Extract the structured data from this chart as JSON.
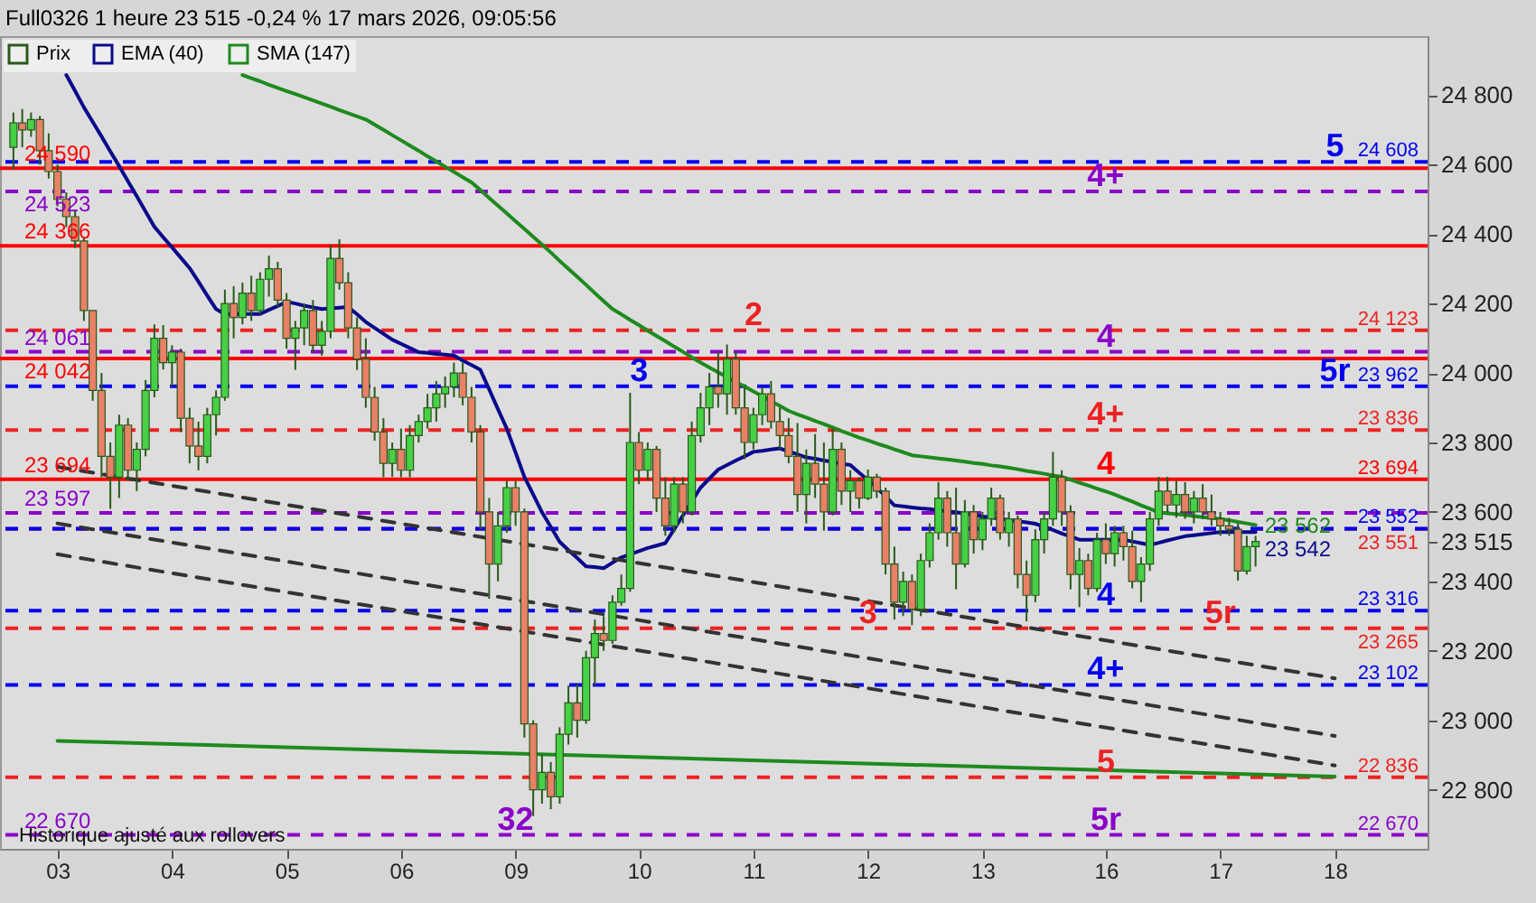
{
  "chart_data": {
    "type": "candlestick",
    "title": "Full0326 1 heure 23 515 -0,24 % 17 mars 2026, 09:05:56",
    "legend": "top left",
    "grid": false,
    "ylim": [
      22630,
      24970
    ],
    "yticks": [
      {
        "value": 22800,
        "label": "22 800"
      },
      {
        "value": 23000,
        "label": "23 000"
      },
      {
        "value": 23200,
        "label": "23 200"
      },
      {
        "value": 23400,
        "label": "23 400"
      },
      {
        "value": 23515,
        "label": "23 515"
      },
      {
        "value": 23600,
        "label": "23 600"
      },
      {
        "value": 23800,
        "label": "23 800"
      },
      {
        "value": 24000,
        "label": "24 000"
      },
      {
        "value": 24200,
        "label": "24 200"
      },
      {
        "value": 24400,
        "label": "24 400"
      },
      {
        "value": 24600,
        "label": "24 600"
      },
      {
        "value": 24800,
        "label": "24 800"
      }
    ],
    "categories": [
      null,
      null,
      null,
      null,
      null,
      "03",
      null,
      null,
      null,
      null,
      null,
      null,
      null,
      null,
      null,
      null,
      null,
      null,
      "04",
      null,
      null,
      null,
      null,
      null,
      null,
      null,
      null,
      null,
      null,
      null,
      null,
      "05",
      null,
      null,
      null,
      null,
      null,
      null,
      null,
      null,
      null,
      null,
      null,
      null,
      "06",
      null,
      null,
      null,
      null,
      null,
      null,
      null,
      null,
      null,
      null,
      null,
      null,
      "09",
      null,
      null,
      null,
      null,
      null,
      null,
      null,
      null,
      null,
      null,
      null,
      null,
      null,
      "10",
      null,
      null,
      null,
      null,
      null,
      null,
      null,
      null,
      null,
      null,
      null,
      null,
      "11",
      null,
      null,
      null,
      null,
      null,
      null,
      null,
      null,
      null,
      null,
      null,
      null,
      "12",
      null,
      null,
      null,
      null,
      null,
      null,
      null,
      null,
      null,
      null,
      null,
      null,
      "13",
      null,
      null,
      null,
      null,
      null,
      null,
      null,
      null,
      null,
      null,
      null,
      null,
      null,
      "16",
      null,
      null,
      null,
      null,
      null,
      null,
      null,
      null,
      null,
      null,
      null,
      null,
      "17",
      null,
      null,
      null,
      null,
      null,
      null,
      null,
      null,
      null,
      null,
      null,
      null,
      "18",
      null,
      null,
      null,
      null,
      null,
      null,
      null,
      null,
      null
    ],
    "series": [
      {
        "name": "Prix",
        "color": "#2a5a1a",
        "ohlc": [
          [
            24650,
            24750,
            24585,
            24720
          ],
          [
            24720,
            24760,
            24650,
            24700
          ],
          [
            24700,
            24750,
            24680,
            24730
          ],
          [
            24730,
            24740,
            24600,
            24640
          ],
          [
            24640,
            24690,
            24560,
            24580
          ],
          [
            24580,
            24600,
            24480,
            24500
          ],
          [
            24500,
            24520,
            24420,
            24450
          ],
          [
            24450,
            24470,
            24360,
            24380
          ],
          [
            24380,
            24390,
            24150,
            24180
          ],
          [
            24180,
            24180,
            23920,
            23950
          ],
          [
            23950,
            24000,
            23700,
            23760
          ],
          [
            23760,
            23800,
            23609,
            23700
          ],
          [
            23700,
            23880,
            23640,
            23850
          ],
          [
            23850,
            23870,
            23690,
            23720
          ],
          [
            23720,
            23800,
            23660,
            23780
          ],
          [
            23780,
            23980,
            23760,
            23950
          ],
          [
            23950,
            24140,
            23930,
            24100
          ],
          [
            24100,
            24138,
            24010,
            24030
          ],
          [
            24030,
            24080,
            23960,
            24060
          ],
          [
            24060,
            24070,
            23830,
            23870
          ],
          [
            23870,
            23900,
            23740,
            23790
          ],
          [
            23790,
            23860,
            23720,
            23760
          ],
          [
            23760,
            23900,
            23740,
            23880
          ],
          [
            23880,
            23950,
            23820,
            23930
          ],
          [
            23930,
            24240,
            23920,
            24200
          ],
          [
            24200,
            24250,
            24100,
            24160
          ],
          [
            24160,
            24260,
            24140,
            24230
          ],
          [
            24230,
            24280,
            24150,
            24180
          ],
          [
            24180,
            24290,
            24170,
            24270
          ],
          [
            24270,
            24338,
            24220,
            24300
          ],
          [
            24300,
            24320,
            24190,
            24210
          ],
          [
            24210,
            24230,
            24070,
            24100
          ],
          [
            24100,
            24150,
            24009,
            24130
          ],
          [
            24130,
            24200,
            24080,
            24180
          ],
          [
            24180,
            24210,
            24060,
            24080
          ],
          [
            24080,
            24150,
            24050,
            24120
          ],
          [
            24120,
            24370,
            24100,
            24330
          ],
          [
            24330,
            24385,
            24240,
            24260
          ],
          [
            24260,
            24290,
            24100,
            24130
          ],
          [
            24130,
            24160,
            24009,
            24040
          ],
          [
            24040,
            24100,
            23900,
            23930
          ],
          [
            23930,
            23960,
            23805,
            23830
          ],
          [
            23830,
            23870,
            23700,
            23740
          ],
          [
            23740,
            23800,
            23701,
            23780
          ],
          [
            23780,
            23840,
            23700,
            23720
          ],
          [
            23720,
            23850,
            23700,
            23820
          ],
          [
            23820,
            23880,
            23800,
            23860
          ],
          [
            23860,
            23940,
            23840,
            23900
          ],
          [
            23900,
            23977,
            23860,
            23940
          ],
          [
            23940,
            23990,
            23900,
            23960
          ],
          [
            23960,
            24030,
            23930,
            24000
          ],
          [
            24000,
            24030,
            23907,
            23930
          ],
          [
            23930,
            23960,
            23800,
            23830
          ],
          [
            23830,
            23850,
            23550,
            23600
          ],
          [
            23600,
            23640,
            23350,
            23450
          ],
          [
            23450,
            23600,
            23400,
            23560
          ],
          [
            23560,
            23690,
            23540,
            23670
          ],
          [
            23670,
            23690,
            23560,
            23600
          ],
          [
            23600,
            23610,
            22950,
            22990
          ],
          [
            22990,
            23000,
            22724,
            22800
          ],
          [
            22800,
            22900,
            22760,
            22850
          ],
          [
            22850,
            22880,
            22744,
            22780
          ],
          [
            22780,
            22980,
            22760,
            22960
          ],
          [
            22960,
            23100,
            22930,
            23050
          ],
          [
            23050,
            23104,
            22950,
            23000
          ],
          [
            23000,
            23200,
            22990,
            23180
          ],
          [
            23180,
            23290,
            23100,
            23250
          ],
          [
            23250,
            23300,
            23200,
            23230
          ],
          [
            23230,
            23360,
            23220,
            23340
          ],
          [
            23340,
            23420,
            23330,
            23380
          ],
          [
            23380,
            23943,
            23370,
            23800
          ],
          [
            23800,
            23830,
            23680,
            23720
          ],
          [
            23720,
            23800,
            23690,
            23780
          ],
          [
            23780,
            23790,
            23600,
            23640
          ],
          [
            23640,
            23700,
            23531,
            23560
          ],
          [
            23560,
            23700,
            23540,
            23680
          ],
          [
            23680,
            23700,
            23567,
            23600
          ],
          [
            23600,
            23860,
            23590,
            23820
          ],
          [
            23820,
            23943,
            23800,
            23900
          ],
          [
            23900,
            24000,
            23850,
            23960
          ],
          [
            23960,
            24060,
            23900,
            23940
          ],
          [
            23940,
            24082,
            23880,
            24040
          ],
          [
            24040,
            24061,
            23880,
            23900
          ],
          [
            23900,
            23960,
            23752,
            23800
          ],
          [
            23800,
            23900,
            23780,
            23880
          ],
          [
            23880,
            23960,
            23850,
            23940
          ],
          [
            23940,
            23977,
            23840,
            23860
          ],
          [
            23860,
            23900,
            23780,
            23820
          ],
          [
            23820,
            23870,
            23740,
            23760
          ],
          [
            23760,
            23856,
            23600,
            23650
          ],
          [
            23650,
            23780,
            23567,
            23740
          ],
          [
            23740,
            23824,
            23640,
            23680
          ],
          [
            23680,
            23800,
            23546,
            23600
          ],
          [
            23600,
            23840,
            23590,
            23780
          ],
          [
            23780,
            23800,
            23620,
            23660
          ],
          [
            23660,
            23720,
            23600,
            23690
          ],
          [
            23690,
            23700,
            23610,
            23640
          ],
          [
            23640,
            23722,
            23634,
            23700
          ],
          [
            23700,
            23710,
            23640,
            23660
          ],
          [
            23660,
            23670,
            23420,
            23450
          ],
          [
            23450,
            23500,
            23290,
            23340
          ],
          [
            23340,
            23428,
            23300,
            23400
          ],
          [
            23400,
            23420,
            23274,
            23320
          ],
          [
            23320,
            23480,
            23300,
            23460
          ],
          [
            23460,
            23567,
            23440,
            23540
          ],
          [
            23540,
            23686,
            23520,
            23640
          ],
          [
            23640,
            23660,
            23500,
            23540
          ],
          [
            23540,
            23670,
            23377,
            23450
          ],
          [
            23450,
            23634,
            23440,
            23600
          ],
          [
            23600,
            23620,
            23480,
            23520
          ],
          [
            23520,
            23600,
            23490,
            23580
          ],
          [
            23580,
            23670,
            23560,
            23640
          ],
          [
            23640,
            23650,
            23520,
            23540
          ],
          [
            23540,
            23600,
            23500,
            23580
          ],
          [
            23580,
            23590,
            23380,
            23420
          ],
          [
            23420,
            23460,
            23285,
            23360
          ],
          [
            23360,
            23550,
            23340,
            23520
          ],
          [
            23520,
            23600,
            23480,
            23580
          ],
          [
            23580,
            23773,
            23560,
            23700
          ],
          [
            23700,
            23720,
            23560,
            23600
          ],
          [
            23600,
            23619,
            23377,
            23420
          ],
          [
            23420,
            23496,
            23326,
            23460
          ],
          [
            23460,
            23480,
            23360,
            23380
          ],
          [
            23380,
            23540,
            23370,
            23520
          ],
          [
            23520,
            23567,
            23450,
            23480
          ],
          [
            23480,
            23560,
            23443,
            23540
          ],
          [
            23540,
            23560,
            23460,
            23500
          ],
          [
            23500,
            23546,
            23380,
            23400
          ],
          [
            23400,
            23470,
            23340,
            23450
          ],
          [
            23450,
            23600,
            23430,
            23580
          ],
          [
            23580,
            23701,
            23560,
            23660
          ],
          [
            23660,
            23701,
            23600,
            23620
          ],
          [
            23620,
            23690,
            23583,
            23650
          ],
          [
            23650,
            23686,
            23580,
            23600
          ],
          [
            23600,
            23660,
            23567,
            23640
          ],
          [
            23640,
            23680,
            23580,
            23600
          ],
          [
            23600,
            23650,
            23560,
            23580
          ],
          [
            23580,
            23600,
            23531,
            23560
          ],
          [
            23560,
            23583,
            23531,
            23550
          ],
          [
            23550,
            23567,
            23402,
            23430
          ],
          [
            23430,
            23531,
            23420,
            23500
          ],
          [
            23500,
            23531,
            23443,
            23515
          ],
          null,
          null,
          null,
          null,
          null,
          null,
          null,
          null,
          null,
          null,
          null,
          null,
          null,
          null,
          null,
          null,
          null,
          null
        ]
      },
      {
        "name": "EMA (40)",
        "type": "line",
        "color": "#0a0a8c",
        "value_labels": [
          null,
          null,
          null,
          null,
          null,
          null,
          null,
          null,
          null,
          null,
          null,
          null,
          null,
          null,
          null,
          null,
          null,
          null,
          null,
          null,
          null,
          null,
          null,
          null,
          null,
          null,
          null,
          null,
          null,
          null,
          null,
          null,
          null,
          null,
          null,
          null,
          null,
          null,
          null,
          null,
          null,
          null,
          null,
          null,
          null,
          null,
          null,
          null,
          null,
          null,
          null,
          null,
          null,
          null,
          null,
          null,
          null,
          null,
          null,
          null,
          null,
          null,
          null,
          null,
          null,
          null,
          null,
          null,
          null,
          null,
          null,
          null,
          null,
          null,
          null,
          null,
          null,
          null,
          null,
          null,
          null,
          null,
          null,
          null,
          null,
          null,
          null,
          null,
          null,
          null,
          null,
          null,
          null,
          null,
          null,
          null,
          null,
          null,
          null,
          null,
          null,
          null,
          null,
          null,
          null,
          null,
          null,
          null,
          null,
          null,
          null,
          null,
          null,
          null,
          null,
          null,
          null,
          null,
          null,
          null,
          null,
          null,
          null,
          null,
          null,
          null,
          null,
          null,
          null,
          null,
          null,
          null,
          null,
          null,
          null,
          null,
          null,
          null,
          null,
          null,
          null,
          "23 542",
          null,
          null,
          null,
          null,
          null,
          null,
          null,
          null,
          null,
          null,
          null,
          null,
          null,
          null,
          null,
          null,
          null,
          null
        ],
        "values": [
          null,
          null,
          null,
          null,
          null,
          null,
          24858,
          24812,
          24765,
          24723,
          24681,
          24638,
          24596,
          24552,
          24509,
          24465,
          24421,
          24391,
          24362,
          24332,
          24302,
          24263,
          24223,
          24184,
          24169,
          24169,
          24170,
          24170,
          24170,
          24182,
          24193,
          24205,
          24200,
          24194,
          24189,
          24184,
          24186,
          24188,
          24190,
          24169,
          24147,
          24130,
          24113,
          24096,
          24084,
          24072,
          24060,
          24058,
          24055,
          24053,
          24050,
          24036,
          24023,
          24009,
          23953,
          23896,
          23840,
          23771,
          23701,
          23650,
          23599,
          23557,
          23514,
          23490,
          23467,
          23443,
          23441,
          23438,
          23454,
          23469,
          23478,
          23487,
          23496,
          23503,
          23510,
          23550,
          23590,
          23630,
          23670,
          23696,
          23722,
          23735,
          23748,
          23760,
          23773,
          23776,
          23780,
          23783,
          23774,
          23766,
          23757,
          23753,
          23748,
          23744,
          23739,
          23735,
          23713,
          23692,
          23670,
          23645,
          23619,
          23616,
          23613,
          23610,
          23608,
          23605,
          23602,
          23599,
          23595,
          23591,
          23587,
          23584,
          23580,
          23577,
          23573,
          23570,
          23566,
          23557,
          23548,
          23538,
          23529,
          23520,
          23520,
          23520,
          23520,
          23520,
          23520,
          23515,
          23510,
          23505,
          23511,
          23518,
          23524,
          23530,
          23533,
          23536,
          23539,
          23542,
          23542,
          23542,
          23542,
          23542,
          null,
          null,
          null,
          null,
          null,
          null,
          null,
          null,
          null,
          null,
          null,
          null,
          null,
          null,
          null,
          null,
          null,
          null
        ]
      },
      {
        "name": "SMA (147)",
        "type": "line",
        "color": "#1e8a1e",
        "value_labels": [
          null,
          null,
          null,
          null,
          null,
          null,
          null,
          null,
          null,
          null,
          null,
          null,
          null,
          null,
          null,
          null,
          null,
          null,
          null,
          null,
          null,
          null,
          null,
          null,
          null,
          null,
          null,
          null,
          null,
          null,
          null,
          null,
          null,
          null,
          null,
          null,
          null,
          null,
          null,
          null,
          null,
          null,
          null,
          null,
          null,
          null,
          null,
          null,
          null,
          null,
          null,
          null,
          null,
          null,
          null,
          null,
          null,
          null,
          null,
          null,
          null,
          null,
          null,
          null,
          null,
          null,
          null,
          null,
          null,
          null,
          null,
          null,
          null,
          null,
          null,
          null,
          null,
          null,
          null,
          null,
          null,
          null,
          null,
          null,
          null,
          null,
          null,
          null,
          null,
          null,
          null,
          null,
          null,
          null,
          null,
          null,
          null,
          null,
          null,
          null,
          null,
          null,
          null,
          null,
          null,
          null,
          null,
          null,
          null,
          null,
          null,
          null,
          null,
          null,
          null,
          null,
          null,
          null,
          null,
          null,
          null,
          null,
          null,
          null,
          null,
          null,
          null,
          null,
          null,
          null,
          null,
          null,
          null,
          null,
          null,
          null,
          null,
          null,
          null,
          null,
          null,
          "23 562",
          null,
          null,
          null,
          null,
          null,
          null,
          null,
          null,
          null,
          null,
          null,
          null,
          null,
          null,
          null,
          null,
          null,
          null
        ],
        "values": [
          null,
          null,
          null,
          null,
          null,
          null,
          null,
          null,
          null,
          null,
          null,
          null,
          null,
          null,
          null,
          null,
          null,
          null,
          null,
          null,
          null,
          null,
          null,
          null,
          null,
          null,
          24858,
          24849,
          24840,
          24830,
          24821,
          24812,
          24803,
          24794,
          24785,
          24776,
          24767,
          24757,
          24748,
          24739,
          24730,
          24715,
          24700,
          24685,
          24670,
          24655,
          24640,
          24624,
          24609,
          24594,
          24579,
          24564,
          24549,
          24527,
          24504,
          24482,
          24460,
          24437,
          24415,
          24392,
          24370,
          24347,
          24323,
          24300,
          24277,
          24254,
          24230,
          24207,
          24184,
          24169,
          24153,
          24138,
          24122,
          24107,
          24092,
          24076,
          24061,
          24045,
          24030,
          24016,
          24002,
          23988,
          23974,
          23961,
          23947,
          23933,
          23919,
          23905,
          23891,
          23881,
          23872,
          23862,
          23853,
          23843,
          23833,
          23824,
          23814,
          23806,
          23797,
          23789,
          23780,
          23772,
          23763,
          23760,
          23757,
          23754,
          23751,
          23748,
          23745,
          23741,
          23738,
          23734,
          23731,
          23727,
          23723,
          23718,
          23714,
          23710,
          23705,
          23701,
          23693,
          23684,
          23676,
          23667,
          23659,
          23650,
          23640,
          23630,
          23619,
          23609,
          23599,
          23596,
          23594,
          23591,
          23588,
          23585,
          23583,
          23580,
          23576,
          23571,
          23567,
          23562,
          null,
          null,
          null,
          null,
          null,
          null,
          null,
          null,
          null,
          null,
          null,
          null,
          null,
          null,
          null,
          null,
          null,
          null
        ]
      },
      {
        "type": "line",
        "color": "#1e8a1e",
        "x": [
          "03",
          "18"
        ],
        "values": [
          22941,
          22838
        ]
      },
      {
        "type": "line",
        "color": "#333333",
        "line_style": "dashed",
        "x": [
          "03",
          "18"
        ],
        "values": [
          23730,
          23121
        ]
      },
      {
        "type": "line",
        "color": "#333333",
        "line_style": "dashed",
        "x": [
          "03",
          "18"
        ],
        "values": [
          23567,
          22955
        ]
      },
      {
        "type": "line",
        "color": "#333333",
        "line_style": "dashed",
        "x": [
          "03",
          "18"
        ],
        "values": [
          23478,
          22870
        ]
      }
    ],
    "ref_lines": [
      {
        "axis": "y",
        "value": 24590,
        "color": "#ff0000",
        "line_style": "solid"
      },
      {
        "axis": "y",
        "value": 24366,
        "color": "#ff0000",
        "line_style": "solid"
      },
      {
        "axis": "y",
        "value": 24042,
        "color": "#ff0000",
        "line_style": "solid"
      },
      {
        "axis": "y",
        "value": 23694,
        "color": "#ff0000",
        "line_style": "solid"
      },
      {
        "axis": "y",
        "value": 24523,
        "color": "#8a00c8",
        "line_style": "dashed"
      },
      {
        "axis": "y",
        "value": 24061,
        "color": "#8a00c8",
        "line_style": "dashed"
      },
      {
        "axis": "y",
        "value": 23597,
        "color": "#8a00c8",
        "line_style": "dashed"
      },
      {
        "axis": "y",
        "value": 22670,
        "color": "#8a00c8",
        "line_style": "dashed"
      },
      {
        "axis": "y",
        "value": 24123,
        "color": "#ee2222",
        "line_style": "dashed"
      },
      {
        "axis": "y",
        "value": 23836,
        "color": "#ee2222",
        "line_style": "dashed"
      },
      {
        "axis": "y",
        "value": 23551,
        "color": "#ee2222",
        "line_style": "dashed"
      },
      {
        "axis": "y",
        "value": 23265,
        "color": "#ee2222",
        "line_style": "dashed"
      },
      {
        "axis": "y",
        "value": 22836,
        "color": "#ee2222",
        "line_style": "dashed"
      },
      {
        "axis": "y",
        "value": 24608,
        "color": "#0000ee",
        "line_style": "dashed"
      },
      {
        "axis": "y",
        "value": 23962,
        "color": "#0000ee",
        "line_style": "dashed"
      },
      {
        "axis": "y",
        "value": 23552,
        "color": "#0000ee",
        "line_style": "dashed"
      },
      {
        "axis": "y",
        "value": 23316,
        "color": "#0000ee",
        "line_style": "dashed"
      },
      {
        "axis": "y",
        "value": 23102,
        "color": "#0000ee",
        "line_style": "dashed"
      }
    ],
    "annotations": [
      {
        "text": "24 590",
        "x": "03",
        "y": 24590
      },
      {
        "text": "24 523",
        "x": "03",
        "y": 24523
      },
      {
        "text": "24 366",
        "x": "03",
        "y": 24366
      },
      {
        "text": "24 061",
        "x": "03",
        "y": 24061
      },
      {
        "text": "24 042",
        "x": "03",
        "y": 24042
      },
      {
        "text": "23 694",
        "x": "03",
        "y": 23694
      },
      {
        "text": "23 597",
        "x": "03",
        "y": 23597
      },
      {
        "text": "22 670",
        "x": "03",
        "y": 22670
      },
      {
        "text": "24 608",
        "y": 24608
      },
      {
        "text": "24 123",
        "y": 24123
      },
      {
        "text": "23 962",
        "y": 23962
      },
      {
        "text": "23 836",
        "y": 23836
      },
      {
        "text": "23 694",
        "y": 23694
      },
      {
        "text": "23 551",
        "y": 23551
      },
      {
        "text": "23 552",
        "y": 23552
      },
      {
        "text": "23 316",
        "y": 23316
      },
      {
        "text": "23 265",
        "y": 23265
      },
      {
        "text": "23 102",
        "y": 23102
      },
      {
        "text": "22 836",
        "y": 22836
      },
      {
        "text": "22 670",
        "y": 22670
      },
      {
        "text": "2",
        "x": "11",
        "y": 24123
      },
      {
        "text": "3",
        "x": "10",
        "y": 23962
      },
      {
        "text": "3",
        "x": "12",
        "y": 23265
      },
      {
        "text": "32",
        "x": "09",
        "y": 22670
      },
      {
        "text": "5",
        "x": "18",
        "y": 24608
      },
      {
        "text": "4+",
        "x": "16",
        "y": 24523
      },
      {
        "text": "4",
        "x": "16",
        "y": 24061
      },
      {
        "text": "5r",
        "x": "18",
        "y": 23962
      },
      {
        "text": "4+",
        "x": "16",
        "y": 23836
      },
      {
        "text": "4",
        "x": "16",
        "y": 23694
      },
      {
        "text": "4",
        "x": "16",
        "y": 23316
      },
      {
        "text": "5r",
        "x": "17",
        "y": 23265
      },
      {
        "text": "4+",
        "x": "16",
        "y": 23102
      },
      {
        "text": "5",
        "x": "16",
        "y": 22836
      },
      {
        "text": "5r",
        "x": "16",
        "y": 22670
      },
      "Historique ajusté aux rollovers"
    ]
  }
}
